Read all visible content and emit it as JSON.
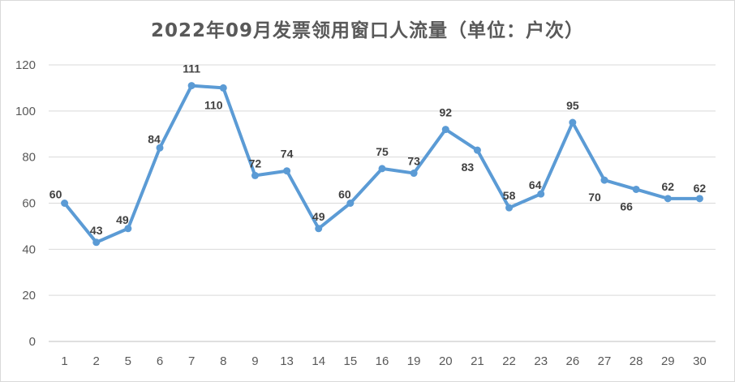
{
  "chart_data": {
    "type": "line",
    "title": "2022年09月发票领用窗口人流量（单位：户次）",
    "categories": [
      "1",
      "2",
      "5",
      "6",
      "7",
      "8",
      "9",
      "13",
      "14",
      "15",
      "16",
      "19",
      "20",
      "21",
      "22",
      "23",
      "26",
      "27",
      "28",
      "29",
      "30"
    ],
    "series": [
      {
        "values": [
          60,
          43,
          49,
          84,
          111,
          110,
          72,
          74,
          49,
          60,
          75,
          73,
          92,
          83,
          58,
          64,
          95,
          70,
          66,
          62,
          62
        ]
      }
    ],
    "ylim": [
      0,
      120
    ],
    "yticks": [
      0,
      20,
      40,
      60,
      80,
      100,
      120
    ],
    "xlabel": "",
    "ylabel": "",
    "grid": true,
    "legend": "none",
    "colors": {
      "line": "#5b9bd5",
      "grid": "#d9d9d9",
      "axis": "#bfbfbf",
      "text": "#595959"
    }
  }
}
